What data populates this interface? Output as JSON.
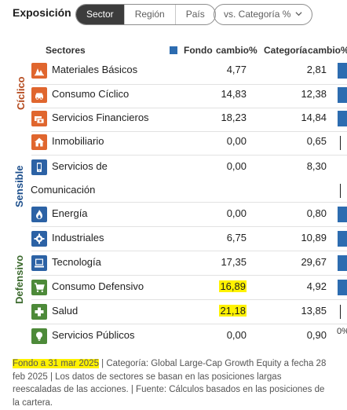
{
  "header": {
    "title": "Exposición",
    "tabs": [
      {
        "label": "Sector",
        "active": true
      },
      {
        "label": "Región",
        "active": false
      },
      {
        "label": "País",
        "active": false
      }
    ],
    "compare_dropdown": {
      "value": "vs. Categoría %",
      "icon": "chevron-down-icon"
    }
  },
  "columns": {
    "sectores": "Sectores",
    "fondo": "Fondo",
    "cambio1": "cambio%",
    "categoria": "Categoría",
    "cambio2": "cambio%"
  },
  "groups": {
    "ciclico": "Cíclico",
    "sensible": "Sensible",
    "defensivo": "Defensivo"
  },
  "colors": {
    "ciclico": "#e0662e",
    "sensible": "#2c62a5",
    "defensivo": "#4d8a39",
    "bar": "#2d6cb0",
    "highlight": "#fff200"
  },
  "rows": [
    {
      "sector": "Materiales Básicos",
      "fondo": "4,77",
      "categoria": "2,81",
      "icon": "minerals-icon"
    },
    {
      "sector": "Consumo Cíclico",
      "fondo": "14,83",
      "categoria": "12,38",
      "icon": "car-icon"
    },
    {
      "sector": "Servicios Financieros",
      "fondo": "18,23",
      "categoria": "14,84",
      "icon": "money-icon"
    },
    {
      "sector": "Inmobiliario",
      "fondo": "0,00",
      "categoria": "0,65",
      "icon": "house-icon"
    },
    {
      "sector": "Servicios de",
      "sector_line2": "Comunicación",
      "fondo": "0,00",
      "categoria": "8,30",
      "icon": "phone-icon"
    },
    {
      "sector": "Energía",
      "fondo": "0,00",
      "categoria": "0,80",
      "icon": "flame-icon"
    },
    {
      "sector": "Industriales",
      "fondo": "6,75",
      "categoria": "10,89",
      "icon": "gear-icon"
    },
    {
      "sector": "Tecnología",
      "fondo": "17,35",
      "categoria": "29,67",
      "icon": "computer-icon"
    },
    {
      "sector": "Consumo Defensivo",
      "fondo": "16,89",
      "categoria": "4,92",
      "icon": "cart-icon"
    },
    {
      "sector": "Salud",
      "fondo": "21,18",
      "categoria": "13,85",
      "icon": "health-cross-icon"
    },
    {
      "sector": "Servicios Públicos",
      "fondo": "0,00",
      "categoria": "0,90",
      "icon": "lightbulb-icon"
    }
  ],
  "bar_axis_label": "0%",
  "footnote": {
    "date": "Fondo a 31 mar 2025",
    "rest": " | Categoría: Global Large-Cap Growth Equity a fecha 28 feb 2025 | Los datos de sectores se basan en las posiciones largas reescaladas de las acciones. | Fuente: Cálculos basados en las posiciones de la cartera."
  }
}
